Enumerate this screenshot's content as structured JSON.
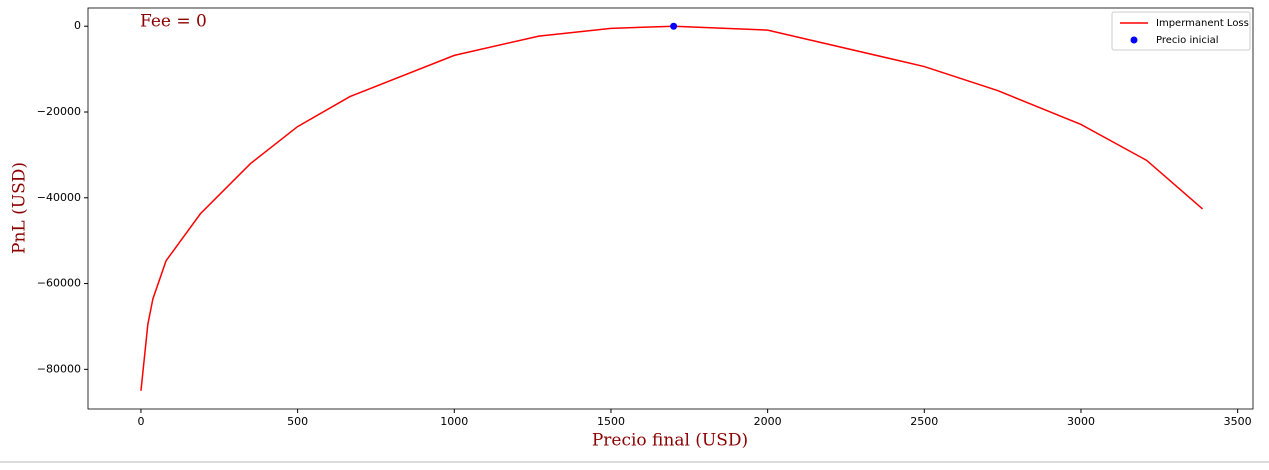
{
  "chart_data": {
    "type": "line",
    "annotation": "Fee = 0",
    "xlabel": "Precio final (USD)",
    "ylabel": "PnL (USD)",
    "series": [
      {
        "name": "Impermanent Loss",
        "type": "line",
        "color": "#ff0000",
        "x": [
          0,
          22,
          38,
          80,
          190,
          350,
          500,
          667,
          1000,
          1270,
          1500,
          1700,
          2000,
          2500,
          2734,
          3000,
          3210,
          3388
        ],
        "values": [
          -85000,
          -69500,
          -63600,
          -54700,
          -43700,
          -32000,
          -23400,
          -16400,
          -6800,
          -2300,
          -500,
          0,
          -900,
          -9400,
          -15000,
          -22900,
          -31300,
          -42600
        ]
      },
      {
        "name": "Precio inicial",
        "type": "scatter",
        "color": "#0000ff",
        "x": [
          1700
        ],
        "values": [
          0
        ]
      }
    ],
    "xlim": [
      -169,
      3549
    ],
    "ylim": [
      -89250,
      4250
    ],
    "xticks": [
      0,
      500,
      1000,
      1500,
      2000,
      2500,
      3000,
      3500
    ],
    "yticks": [
      {
        "value": -80000,
        "label": "−80000"
      },
      {
        "value": -60000,
        "label": "−60000"
      },
      {
        "value": -40000,
        "label": "−40000"
      },
      {
        "value": -20000,
        "label": "−20000"
      },
      0
    ],
    "legend": "upper right"
  }
}
